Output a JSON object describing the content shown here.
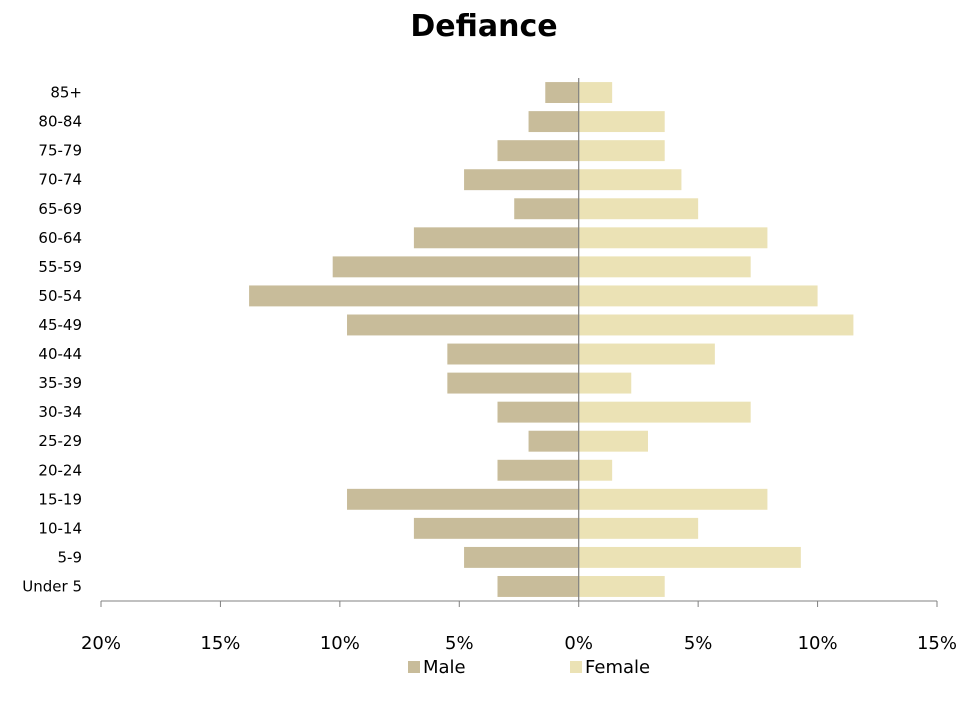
{
  "chart_data": {
    "type": "bar",
    "orientation": "horizontal",
    "title": "Defiance",
    "categories": [
      "Under 5",
      "5-9",
      "10-14",
      "15-19",
      "20-24",
      "25-29",
      "30-34",
      "35-39",
      "40-44",
      "45-49",
      "50-54",
      "55-59",
      "60-64",
      "65-69",
      "70-74",
      "75-79",
      "80-84",
      "85+"
    ],
    "series": [
      {
        "name": "Male",
        "color": "#c8bc9a",
        "values": [
          3.4,
          4.8,
          6.9,
          9.7,
          3.4,
          2.1,
          3.4,
          5.5,
          5.5,
          9.7,
          13.8,
          10.3,
          6.9,
          2.7,
          4.8,
          3.4,
          2.1,
          1.4
        ]
      },
      {
        "name": "Female",
        "color": "#ebe2b5",
        "values": [
          3.6,
          9.3,
          5.0,
          7.9,
          1.4,
          2.9,
          7.2,
          2.2,
          5.7,
          11.5,
          10.0,
          7.2,
          7.9,
          5.0,
          4.3,
          3.6,
          3.6,
          1.4
        ]
      }
    ],
    "xlim": [
      -20,
      15
    ],
    "xticks": [
      -20,
      -15,
      -10,
      -5,
      0,
      5,
      10,
      15
    ],
    "xtick_labels": [
      "20%",
      "15%",
      "10%",
      "5%",
      "0%",
      "5%",
      "10%",
      "15%"
    ],
    "legend": "bottom",
    "grid": false
  }
}
